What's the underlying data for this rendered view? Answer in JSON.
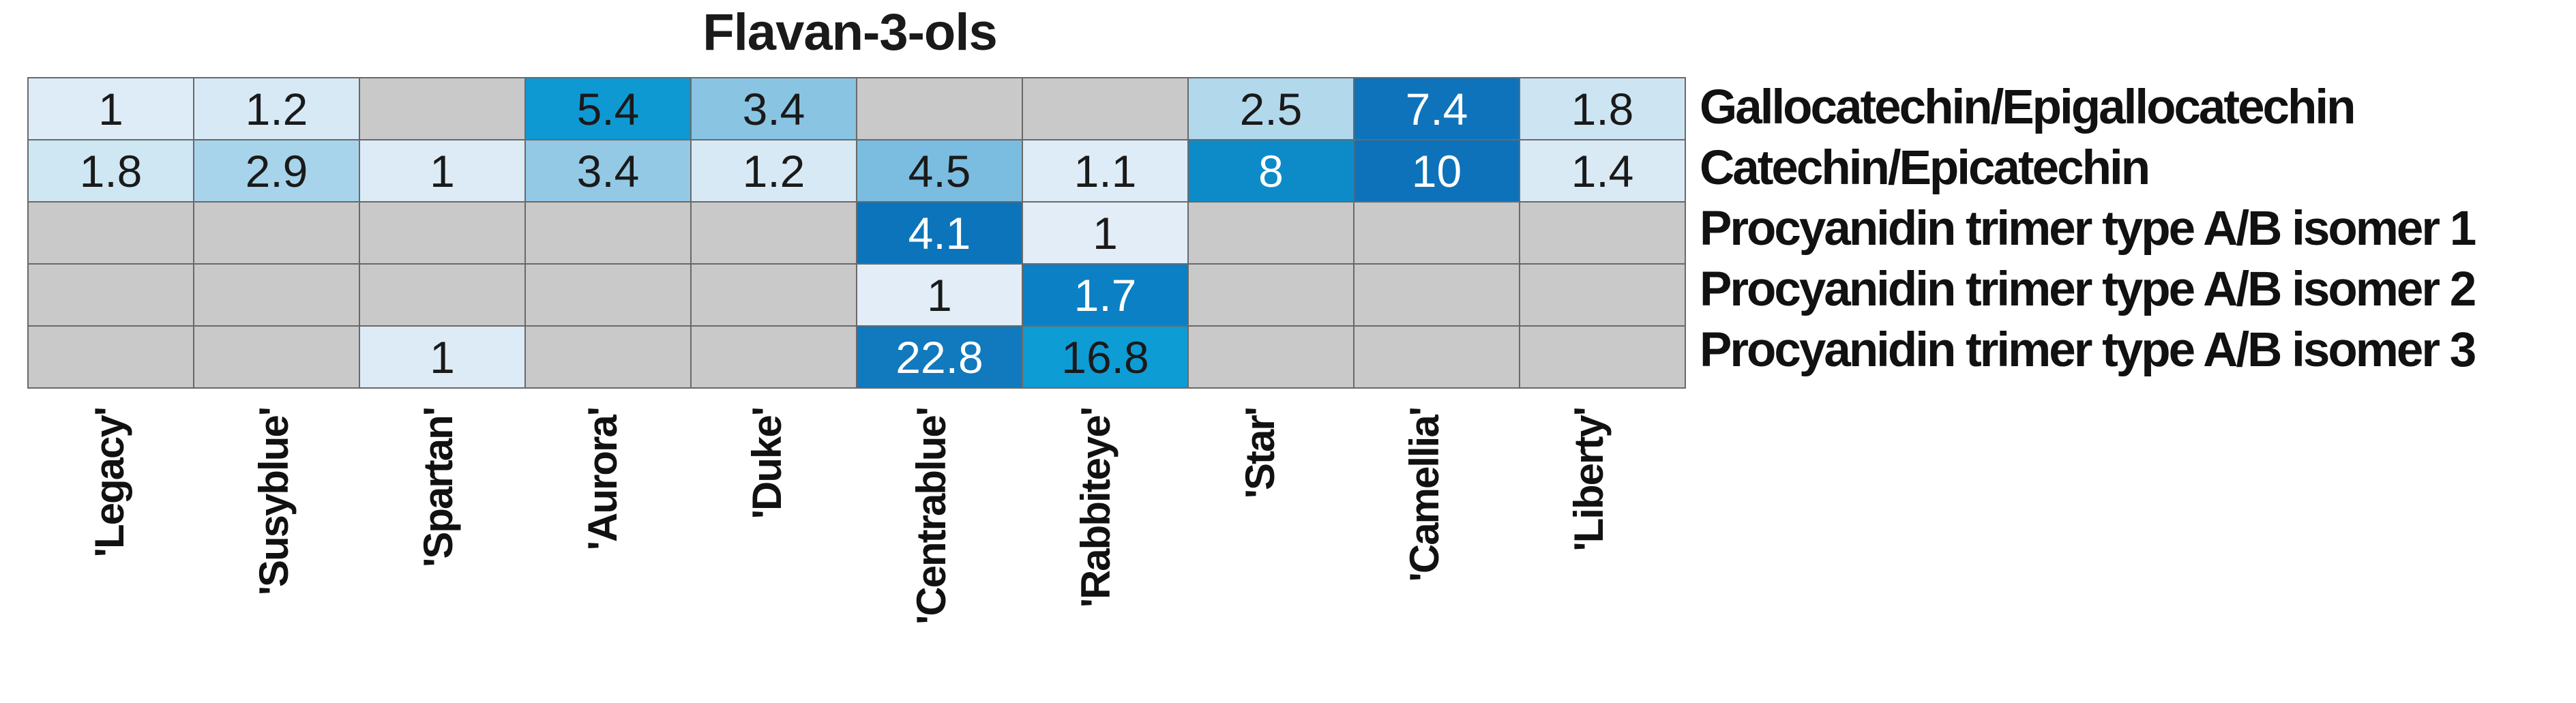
{
  "title": "Flavan-3-ols",
  "chart_data": {
    "type": "heatmap",
    "title": "Flavan-3-ols",
    "x_categories": [
      "'Legacy'",
      "'Susyblue'",
      "'Spartan'",
      "'Aurora'",
      "'Duke'",
      "'Centrablue'",
      "'Rabbiteye'",
      "'Star'",
      "'Camellia'",
      "'Liberty'"
    ],
    "y_categories": [
      "Gallocatechin/Epigallocatechin",
      "Catechin/Epicatechin",
      "Procyanidin trimer type A/B isomer 1",
      "Procyanidin trimer type A/B isomer 2",
      "Procyanidin trimer type A/B isomer 3"
    ],
    "values": [
      [
        1,
        1.2,
        null,
        5.4,
        3.4,
        null,
        null,
        2.5,
        7.4,
        1.8
      ],
      [
        1.8,
        2.9,
        1,
        3.4,
        1.2,
        4.5,
        1.1,
        8,
        10,
        1.4
      ],
      [
        null,
        null,
        null,
        null,
        null,
        4.1,
        1,
        null,
        null,
        null
      ],
      [
        null,
        null,
        null,
        null,
        null,
        1,
        1.7,
        null,
        null,
        null
      ],
      [
        null,
        null,
        1,
        null,
        null,
        22.8,
        16.8,
        null,
        null,
        null
      ]
    ],
    "cell_colors": [
      [
        "#ddecf7",
        "#d7e9f5",
        null,
        "#0f99d3",
        "#8ac4e3",
        null,
        null,
        "#b2d8ec",
        "#0e73bb",
        "#cde5f2"
      ],
      [
        "#cfe6f3",
        "#a7d4ea",
        "#dcebf6",
        "#93c9e5",
        "#d7e9f4",
        "#7abde0",
        "#ddecf7",
        "#0d8bc9",
        "#0d72ba",
        "#d9eaf5"
      ],
      [
        null,
        null,
        null,
        null,
        null,
        "#0c74bb",
        "#e2edf7",
        null,
        null,
        null
      ],
      [
        null,
        null,
        null,
        null,
        null,
        "#e2edf7",
        "#0b80c4",
        null,
        null,
        null
      ],
      [
        null,
        null,
        "#dcebf6",
        null,
        null,
        "#1179be",
        "#0e9cd4",
        null,
        null,
        null
      ]
    ],
    "white_text_cells": [
      [
        0,
        8
      ],
      [
        1,
        7
      ],
      [
        1,
        8
      ],
      [
        2,
        5
      ],
      [
        3,
        6
      ],
      [
        4,
        5
      ]
    ],
    "missing_color": "#c9c9c9",
    "grid_line_color": "#696969",
    "text_color_dark": "#1a1a1a",
    "text_color_light": "#ffffff",
    "colormap": "Blues",
    "legend": "none",
    "value_range": [
      1,
      22.8
    ]
  }
}
